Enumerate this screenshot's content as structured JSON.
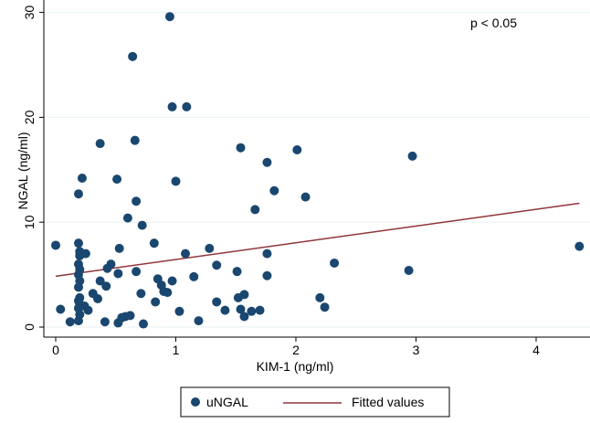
{
  "chart_data": {
    "type": "scatter",
    "title": "",
    "xlabel": "KIM-1 (ng/ml)",
    "ylabel": "NGAL (ng/ml)",
    "xlim": [
      0,
      4.4
    ],
    "ylim": [
      0,
      30
    ],
    "xticks": [
      0,
      1,
      2,
      3,
      4
    ],
    "yticks": [
      0,
      10,
      20,
      30
    ],
    "grid": "horizontal",
    "annotation": "p < 0.05",
    "legend": {
      "placement": "bottom",
      "entries": [
        "uNGAL",
        "Fitted values"
      ]
    },
    "colors": {
      "points": "#1a476f",
      "fit": "#90353b",
      "grid": "#eaf2f3"
    },
    "series": [
      {
        "name": "uNGAL",
        "type": "scatter",
        "points": [
          [
            0.0,
            7.8
          ],
          [
            0.04,
            1.7
          ],
          [
            0.12,
            0.5
          ],
          [
            0.19,
            12.7
          ],
          [
            0.22,
            14.2
          ],
          [
            0.19,
            8.0
          ],
          [
            0.2,
            7.2
          ],
          [
            0.2,
            6.8
          ],
          [
            0.19,
            6.0
          ],
          [
            0.2,
            5.5
          ],
          [
            0.19,
            5.0
          ],
          [
            0.2,
            4.4
          ],
          [
            0.19,
            3.8
          ],
          [
            0.2,
            2.8
          ],
          [
            0.19,
            2.5
          ],
          [
            0.2,
            2.2
          ],
          [
            0.19,
            1.8
          ],
          [
            0.2,
            1.2
          ],
          [
            0.19,
            0.6
          ],
          [
            0.25,
            7.0
          ],
          [
            0.24,
            2.0
          ],
          [
            0.27,
            1.6
          ],
          [
            0.31,
            3.2
          ],
          [
            0.35,
            2.7
          ],
          [
            0.37,
            4.4
          ],
          [
            0.42,
            3.9
          ],
          [
            0.37,
            17.5
          ],
          [
            0.41,
            0.5
          ],
          [
            0.43,
            5.6
          ],
          [
            0.46,
            6.0
          ],
          [
            0.52,
            5.1
          ],
          [
            0.51,
            14.1
          ],
          [
            0.53,
            7.5
          ],
          [
            0.52,
            0.4
          ],
          [
            0.55,
            0.9
          ],
          [
            0.58,
            1.0
          ],
          [
            0.62,
            1.1
          ],
          [
            0.64,
            25.8
          ],
          [
            0.66,
            17.8
          ],
          [
            0.67,
            12.0
          ],
          [
            0.67,
            5.3
          ],
          [
            0.6,
            10.4
          ],
          [
            0.72,
            9.7
          ],
          [
            0.71,
            3.2
          ],
          [
            0.73,
            0.3
          ],
          [
            0.82,
            8.0
          ],
          [
            0.83,
            2.4
          ],
          [
            0.88,
            4.0
          ],
          [
            0.85,
            4.6
          ],
          [
            0.9,
            3.4
          ],
          [
            0.93,
            3.3
          ],
          [
            0.95,
            29.6
          ],
          [
            0.97,
            21.0
          ],
          [
            0.97,
            4.4
          ],
          [
            1.0,
            13.9
          ],
          [
            1.03,
            1.5
          ],
          [
            1.09,
            21.0
          ],
          [
            1.08,
            7.0
          ],
          [
            1.15,
            4.8
          ],
          [
            1.19,
            0.6
          ],
          [
            1.28,
            7.5
          ],
          [
            1.34,
            5.9
          ],
          [
            1.34,
            2.4
          ],
          [
            1.41,
            1.6
          ],
          [
            1.54,
            17.1
          ],
          [
            1.51,
            5.3
          ],
          [
            1.52,
            2.8
          ],
          [
            1.54,
            1.7
          ],
          [
            1.57,
            1.0
          ],
          [
            1.57,
            3.1
          ],
          [
            1.63,
            1.5
          ],
          [
            1.7,
            1.6
          ],
          [
            1.66,
            11.2
          ],
          [
            1.76,
            15.7
          ],
          [
            1.76,
            4.9
          ],
          [
            1.76,
            7.0
          ],
          [
            1.82,
            13.0
          ],
          [
            2.01,
            16.9
          ],
          [
            2.08,
            12.4
          ],
          [
            2.2,
            2.8
          ],
          [
            2.24,
            1.9
          ],
          [
            2.32,
            6.1
          ],
          [
            2.94,
            5.4
          ],
          [
            2.97,
            16.3
          ],
          [
            4.36,
            7.7
          ]
        ]
      },
      {
        "name": "Fitted values",
        "type": "line",
        "x": [
          0.0,
          4.36
        ],
        "y": [
          4.85,
          11.8
        ]
      }
    ]
  }
}
